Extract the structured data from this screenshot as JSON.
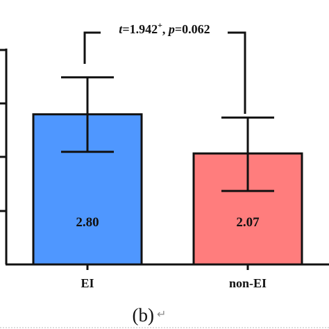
{
  "chart_data": {
    "type": "bar",
    "categories": [
      "EI",
      "non-EI"
    ],
    "values": [
      2.8,
      2.07
    ],
    "value_labels": [
      "2.80",
      "2.07"
    ],
    "error_bars": [
      {
        "low": 2.1,
        "high": 3.49
      },
      {
        "low": 1.37,
        "high": 2.74
      }
    ],
    "colors": [
      "#4f97ff",
      "#ff7d7d"
    ],
    "ylim": [
      0,
      4
    ],
    "grid": false,
    "title": "",
    "xlabel": "",
    "ylabel": "",
    "annotation": {
      "t_symbol": "t",
      "t_value": "=1.942",
      "t_sup": "+",
      "sep": ", ",
      "p_symbol": "p",
      "p_value": "=0.062"
    }
  },
  "caption": {
    "label": "(b)",
    "mark": "↵"
  }
}
